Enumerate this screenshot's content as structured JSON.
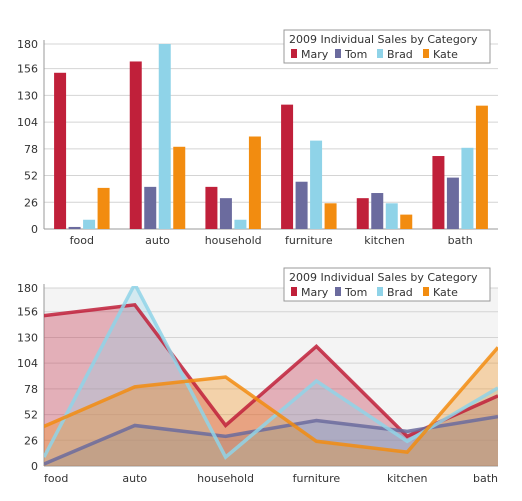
{
  "chart_data": [
    {
      "type": "bar",
      "title": "",
      "legend_title": "2009 Individual Sales by Category",
      "legend_position": "top-right",
      "grid": true,
      "categories": [
        "food",
        "auto",
        "household",
        "furniture",
        "kitchen",
        "bath"
      ],
      "y_ticks": [
        "0",
        "26",
        "52",
        "78",
        "104",
        "130",
        "156",
        "180"
      ],
      "ylim": [
        0,
        180
      ],
      "series": [
        {
          "name": "Mary",
          "color": "#c0203a",
          "values": [
            152,
            163,
            41,
            121,
            30,
            71
          ]
        },
        {
          "name": "Tom",
          "color": "#6b6b9e",
          "values": [
            2,
            41,
            30,
            46,
            35,
            50
          ]
        },
        {
          "name": "Brad",
          "color": "#8fd3e8",
          "values": [
            9,
            184,
            9,
            86,
            25,
            79
          ]
        },
        {
          "name": "Kate",
          "color": "#f28c10",
          "values": [
            40,
            80,
            90,
            25,
            14,
            120
          ]
        }
      ]
    },
    {
      "type": "area",
      "title": "",
      "legend_title": "2009 Individual Sales by Category",
      "legend_position": "top-right",
      "grid": true,
      "categories": [
        "food",
        "auto",
        "household",
        "furniture",
        "kitchen",
        "bath"
      ],
      "y_ticks": [
        "0",
        "26",
        "52",
        "78",
        "104",
        "130",
        "156",
        "180"
      ],
      "ylim": [
        0,
        180
      ],
      "series": [
        {
          "name": "Mary",
          "color": "#c0203a",
          "values": [
            152,
            163,
            41,
            121,
            30,
            71
          ]
        },
        {
          "name": "Tom",
          "color": "#6b6b9e",
          "values": [
            2,
            41,
            30,
            46,
            35,
            50
          ]
        },
        {
          "name": "Brad",
          "color": "#8fd3e8",
          "values": [
            9,
            184,
            9,
            86,
            25,
            79
          ]
        },
        {
          "name": "Kate",
          "color": "#f28c10",
          "values": [
            40,
            80,
            90,
            25,
            14,
            120
          ]
        }
      ]
    }
  ]
}
